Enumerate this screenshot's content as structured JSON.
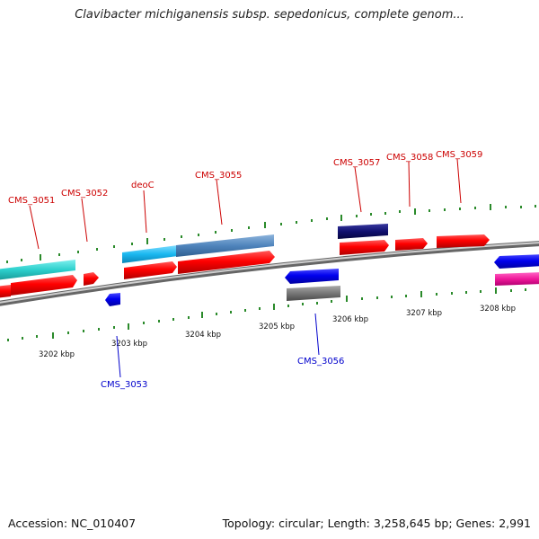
{
  "title": "Clavibacter michiganensis subsp. sepedonicus, complete genom...",
  "footer": {
    "accession": "Accession: NC_010407",
    "stats": "Topology: circular; Length: 3,258,645 bp; Genes: 2,991"
  },
  "colors": {
    "forward_label": "#cc0000",
    "reverse_label": "#0000cc",
    "backbone": "#888888",
    "tick": "#2a8a2a"
  },
  "ruler_labels": [
    "3202 kbp",
    "3203 kbp",
    "3204 kbp",
    "3205 kbp",
    "3206 kbp",
    "3207 kbp",
    "3208 kbp"
  ],
  "gene_labels": [
    {
      "text": "CMS_3051",
      "strand": "forward"
    },
    {
      "text": "CMS_3052",
      "strand": "forward"
    },
    {
      "text": "deoC",
      "strand": "forward"
    },
    {
      "text": "CMS_3055",
      "strand": "forward"
    },
    {
      "text": "CMS_3057",
      "strand": "forward"
    },
    {
      "text": "CMS_3058",
      "strand": "forward"
    },
    {
      "text": "CMS_3059",
      "strand": "forward"
    },
    {
      "text": "CMS_3053",
      "strand": "reverse"
    },
    {
      "text": "CMS_3056",
      "strand": "reverse"
    }
  ]
}
